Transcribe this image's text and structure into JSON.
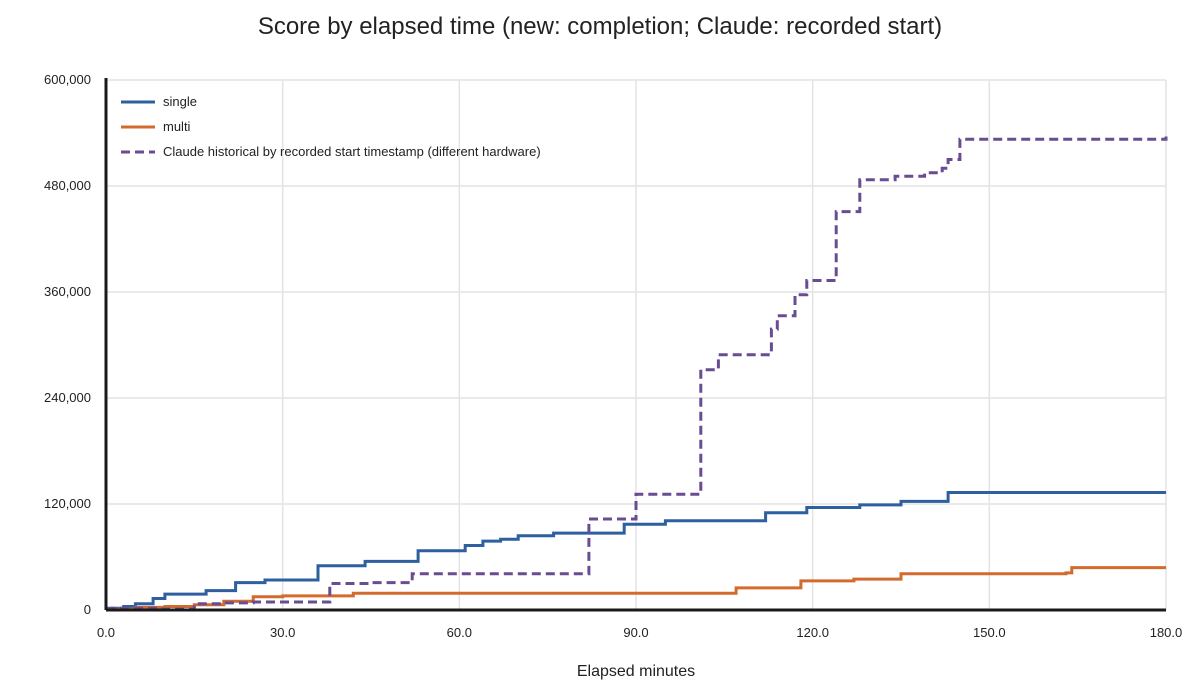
{
  "chart_data": {
    "type": "line",
    "title": "Score by elapsed time (new: completion; Claude: recorded start)",
    "xlabel": "Elapsed minutes",
    "ylabel": "",
    "xlim": [
      0,
      180
    ],
    "ylim": [
      0,
      600000
    ],
    "x_ticks": [
      0,
      30,
      60,
      90,
      120,
      150,
      180
    ],
    "x_tick_labels": [
      "0.0",
      "30.0",
      "60.0",
      "90.0",
      "120.0",
      "150.0",
      "180.0"
    ],
    "y_ticks": [
      0,
      120000,
      240000,
      360000,
      480000,
      600000
    ],
    "y_tick_labels": [
      "0",
      "120,000",
      "240,000",
      "360,000",
      "480,000",
      "600,000"
    ],
    "grid": true,
    "legend_position": "top-left",
    "series": [
      {
        "name": "single",
        "color": "#2e5f9e",
        "dashed": false,
        "points": [
          [
            0,
            0
          ],
          [
            1,
            2000
          ],
          [
            3,
            4000
          ],
          [
            5,
            7000
          ],
          [
            8,
            13000
          ],
          [
            10,
            18000
          ],
          [
            17,
            22000
          ],
          [
            22,
            31000
          ],
          [
            27,
            34000
          ],
          [
            36,
            35000
          ],
          [
            36,
            50000
          ],
          [
            44,
            55000
          ],
          [
            53,
            67000
          ],
          [
            61,
            73000
          ],
          [
            64,
            78000
          ],
          [
            67,
            80000
          ],
          [
            70,
            84000
          ],
          [
            76,
            87000
          ],
          [
            88,
            97000
          ],
          [
            95,
            101000
          ],
          [
            112,
            110000
          ],
          [
            119,
            116000
          ],
          [
            128,
            119000
          ],
          [
            135,
            123000
          ],
          [
            143,
            133000
          ],
          [
            180,
            133000
          ]
        ]
      },
      {
        "name": "multi",
        "color": "#d26b2d",
        "dashed": false,
        "points": [
          [
            0,
            0
          ],
          [
            2,
            1000
          ],
          [
            5,
            3000
          ],
          [
            10,
            4000
          ],
          [
            15,
            6000
          ],
          [
            20,
            10000
          ],
          [
            25,
            15000
          ],
          [
            30,
            16000
          ],
          [
            36,
            16000
          ],
          [
            42,
            19000
          ],
          [
            106,
            19000
          ],
          [
            107,
            25000
          ],
          [
            118,
            33000
          ],
          [
            127,
            35000
          ],
          [
            135,
            41000
          ],
          [
            163,
            42000
          ],
          [
            164,
            48000
          ],
          [
            180,
            48000
          ]
        ]
      },
      {
        "name": "Claude historical by recorded start timestamp (different hardware)",
        "color": "#6a4c93",
        "dashed": true,
        "points": [
          [
            0,
            2000
          ],
          [
            3,
            2000
          ],
          [
            9,
            1000
          ],
          [
            15,
            7000
          ],
          [
            20,
            8000
          ],
          [
            25,
            9000
          ],
          [
            38,
            9000
          ],
          [
            38,
            30000
          ],
          [
            45,
            31000
          ],
          [
            52,
            31000
          ],
          [
            52,
            41000
          ],
          [
            82,
            42000
          ],
          [
            82,
            103000
          ],
          [
            89,
            103000
          ],
          [
            90,
            131000
          ],
          [
            101,
            134000
          ],
          [
            101,
            272000
          ],
          [
            104,
            289000
          ],
          [
            113,
            289000
          ],
          [
            113,
            318000
          ],
          [
            114,
            333000
          ],
          [
            117,
            333000
          ],
          [
            117,
            357000
          ],
          [
            119,
            373000
          ],
          [
            124,
            373000
          ],
          [
            124,
            451000
          ],
          [
            127,
            451000
          ],
          [
            128,
            487000
          ],
          [
            134,
            491000
          ],
          [
            139,
            495000
          ],
          [
            142,
            500000
          ],
          [
            143,
            510000
          ],
          [
            145,
            510000
          ],
          [
            145,
            533000
          ],
          [
            180,
            536000
          ]
        ]
      }
    ]
  }
}
